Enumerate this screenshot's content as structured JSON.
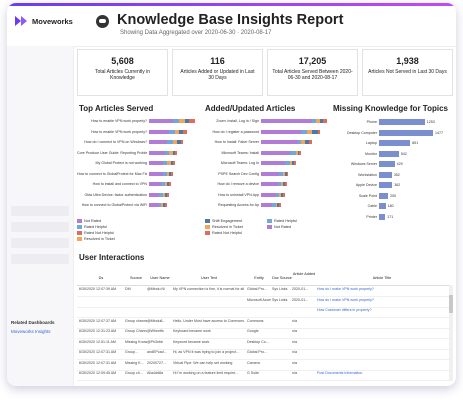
{
  "header": {
    "logo_text": "Moveworks",
    "title": "Knowledge Base Insights Report",
    "subtitle": "Showing Data Aggregated over 2020-06-30 · 2020-08-17"
  },
  "kpis": [
    {
      "value": "5,608",
      "label": "Total Articles Currently in Knowledge"
    },
    {
      "value": "116",
      "label": "Articles Added or Updated in Last 30 Days"
    },
    {
      "value": "17,205",
      "label": "Total Articles Served Between 2020-06-30 and 2020-08-17"
    },
    {
      "value": "1,938",
      "label": "Articles Not Served in Last 30 Days"
    }
  ],
  "sections": {
    "top_served": "Top Articles Served",
    "added_updated": "Added/Updated Articles",
    "missing": "Missing Knowledge for Topics",
    "interactions": "User Interactions"
  },
  "colors": {
    "not_rated": "#b07cd6",
    "rated_helpful": "#6fa8dc",
    "rated_not_helpful": "#e06d5a",
    "resolved_ticket": "#f2a65a",
    "ambiguous": "#4e79a7",
    "deflected": "#9c6bc6",
    "accent": "#6a3cf0",
    "bar_missing": "#7b8fd0"
  },
  "top_served": {
    "rows": [
      {
        "label": "How to enable VPN work properly?",
        "segs": [
          12,
          3,
          3,
          2,
          3
        ]
      },
      {
        "label": "How to enable VPN work properly?",
        "segs": [
          10,
          3,
          2,
          2,
          2
        ]
      },
      {
        "label": "How do I connect to VPN on Windows?",
        "segs": [
          9,
          3,
          2,
          2,
          1
        ]
      },
      {
        "label": "Core Produce User Guide: Reporting Problem",
        "segs": [
          8,
          2,
          2,
          1,
          1
        ]
      },
      {
        "label": "My Global Protect is not working",
        "segs": [
          7,
          2,
          2,
          1,
          1
        ]
      },
      {
        "label": "How to connect to GlobalProtect for Mac Fix",
        "segs": [
          7,
          2,
          1,
          1,
          1
        ]
      },
      {
        "label": "How to install and connect to VPN",
        "segs": [
          6,
          2,
          1,
          1,
          1
        ]
      },
      {
        "label": "Okta Ultra Device: factor authentication",
        "segs": [
          5,
          2,
          1,
          1,
          1
        ]
      },
      {
        "label": "How to connect to GlobalProtect via WiFi",
        "segs": [
          5,
          1,
          1,
          1,
          1
        ]
      }
    ]
  },
  "added_updated": {
    "rows": [
      {
        "label": "Zoom: Install, Log In / Sign",
        "segs": [
          28,
          2,
          2,
          2,
          2
        ]
      },
      {
        "label": "How do I register a password",
        "segs": [
          22,
          3,
          3,
          3,
          1
        ]
      },
      {
        "label": "How to Install: Faker Server",
        "segs": [
          20,
          2,
          2,
          2,
          2
        ]
      },
      {
        "label": "Microsoft Teams: Install",
        "segs": [
          16,
          3,
          1,
          1,
          1
        ]
      },
      {
        "label": "Microsoft Teams: Log In",
        "segs": [
          13,
          3,
          1,
          1,
          1
        ]
      },
      {
        "label": "PSPE Search Dev Config",
        "segs": [
          10,
          2,
          1,
          1,
          1
        ]
      },
      {
        "label": "How do I remove a device",
        "segs": [
          9,
          2,
          1,
          1,
          1
        ]
      },
      {
        "label": "How to uninstall VPN App",
        "segs": [
          8,
          2,
          1,
          1,
          1
        ]
      },
      {
        "label": "Requesting Access for Ap",
        "segs": [
          6,
          2,
          1,
          1,
          1
        ]
      }
    ]
  },
  "missing": {
    "rows": [
      {
        "label": "Phone",
        "value": 1253
      },
      {
        "label": "Desktop Computer",
        "value": 1477
      },
      {
        "label": "Laptop",
        "value": 851
      },
      {
        "label": "Monitor",
        "value": 542
      },
      {
        "label": "Windows Server",
        "value": 429
      },
      {
        "label": "Workstation",
        "value": 352
      },
      {
        "label": "Apple Device",
        "value": 362
      },
      {
        "label": "Scale Point",
        "value": 250
      },
      {
        "label": "Cable",
        "value": 180
      },
      {
        "label": "Printer",
        "value": 171
      }
    ]
  },
  "legend_left": [
    {
      "label": "Not Rated",
      "color_key": "not_rated"
    },
    {
      "label": "Rated Helpful",
      "color_key": "rated_helpful"
    },
    {
      "label": "Rated Not Helpful",
      "color_key": "rated_not_helpful"
    },
    {
      "label": "Resolved in Ticket",
      "color_key": "resolved_ticket"
    }
  ],
  "legend_right": [
    {
      "label": "Shift Engagement",
      "color_key": "ambiguous"
    },
    {
      "label": "Rated Helpful",
      "color_key": "rated_helpful"
    },
    {
      "label": "Resolved in Ticket",
      "color_key": "resolved_ticket"
    },
    {
      "label": "Not Rated",
      "color_key": "not_rated"
    },
    {
      "label": "Rated Not Helpful",
      "color_key": "rated_not_helpful"
    }
  ],
  "table": {
    "headers": [
      "Ds",
      "Source",
      "User Name",
      "User Text",
      "Entity",
      "Doc Source",
      "Article Added",
      "Article Title"
    ],
    "rows": [
      [
        "6/30/2020 12:07:39 AM",
        "DM",
        "@Mindu Ni",
        "My VPN connection is fine, it is normal for all other the issues",
        "Global Pro...",
        "Sys Links",
        "2020-01...",
        "How do I make VPN work properly?"
      ],
      [
        "",
        "",
        "",
        "",
        "Microsoft Access",
        "Sys Links",
        "2020-01...",
        "How do I make VPN work properly?"
      ],
      [
        "",
        "",
        "",
        "",
        "",
        "",
        "",
        "How Customer differs in property?"
      ],
      [
        "6/30/2020 12:07:37 AM",
        "Group channel",
        "@Mindu8...",
        "Hello. Under Must have access to Commons and Simply My Template Issue",
        "Commons",
        "",
        "n/a",
        ""
      ],
      [
        "6/30/2020 12:31:23 AM",
        "Group Channel",
        "@Wheetfs",
        "Keyboard became work",
        "Google",
        "",
        "n/a",
        ""
      ],
      [
        "6/30/2020 12:51:11 AM",
        "Missing Knowledge",
        "@Ph3nbb",
        "Keyword became work",
        "Desktop Co...",
        "",
        "n/a",
        ""
      ],
      [
        "6/30/2020 12:07:31 AM",
        "Group...",
        "andEPcad...",
        "Hi, as VPN it was trying to join a project...",
        "Global Pro...",
        "",
        "n/a",
        ""
      ],
      [
        "6/30/2020 12:07:31 AM",
        "Missing K...",
        "20200727...",
        "Virtual Pipe. We can help set working",
        "Camera",
        "",
        "n/a",
        ""
      ],
      [
        "6/30/2020 12:09:45 AM",
        "Group ch...",
        "Alla4dd8a",
        "Hi I'm working on a feature limit require...",
        "G Suite",
        "",
        "n/a",
        "Post Documents Information"
      ]
    ]
  },
  "sidebar": {
    "related_label": "Related Dashboards",
    "related_link": "Moveworks Insights"
  }
}
